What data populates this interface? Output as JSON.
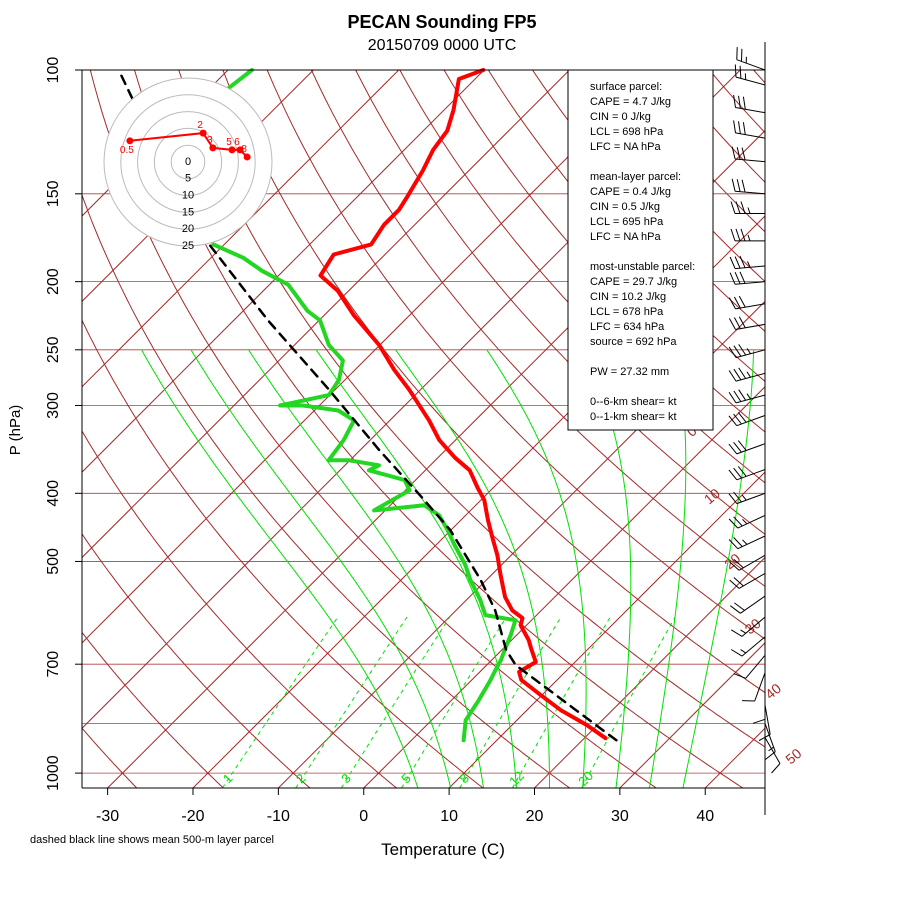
{
  "chart_data": {
    "type": "skewt",
    "title": "PECAN Sounding FP5",
    "subtitle": "20150709 0000 UTC",
    "xlabel": "Temperature (C)",
    "ylabel": "P (hPa)",
    "note": "dashed black line shows mean 500-m layer parcel",
    "xlim": [
      -33,
      47
    ],
    "xticks": [
      -30,
      -20,
      -10,
      0,
      10,
      20,
      30,
      40
    ],
    "ylim": [
      1050,
      100
    ],
    "yticks": [
      100,
      150,
      200,
      250,
      300,
      400,
      500,
      700,
      1000
    ],
    "log_y": true,
    "isobars": [
      100,
      150,
      200,
      250,
      300,
      400,
      500,
      700,
      850,
      1000
    ],
    "isotherms": {
      "color": "#a52a2a",
      "values": [
        -100,
        -90,
        -80,
        -70,
        -60,
        -50,
        -40,
        -30,
        -20,
        -10,
        0,
        10,
        20,
        30,
        40,
        50
      ],
      "labels": [
        0,
        10,
        20,
        30,
        40,
        50
      ]
    },
    "dry_adiabats": {
      "color": "#a52a2a",
      "values": [
        -40,
        -30,
        -20,
        -10,
        0,
        10,
        20,
        30,
        40,
        50,
        60,
        70,
        80,
        90,
        100,
        110,
        120,
        130,
        140,
        150,
        160,
        170,
        180
      ]
    },
    "moist_adiabats": {
      "color": "#00e000",
      "values": [
        4,
        8,
        12,
        16,
        20,
        24,
        28,
        32,
        36
      ]
    },
    "mixing_ratios": {
      "color": "#00e000",
      "values": [
        1,
        2,
        3,
        5,
        8,
        12,
        20
      ]
    },
    "series": [
      {
        "color": "#ff0000",
        "dash": false,
        "pressure": [
          892,
          854,
          814,
          775,
          737,
          718,
          695,
          664,
          647,
          616,
          602,
          587,
          562,
          523,
          490,
          463,
          437,
          409,
          393,
          371,
          356,
          336,
          315,
          285,
          267,
          246,
          223,
          206,
          196,
          183,
          177,
          166,
          158,
          151,
          139,
          130,
          122,
          114,
          103,
          100
        ],
        "values": [
          22.5,
          18.7,
          14.0,
          9.9,
          5.8,
          4.6,
          5.4,
          3.2,
          2.0,
          -0.7,
          -1.3,
          -3.4,
          -5.8,
          -8.9,
          -11.6,
          -14.2,
          -16.8,
          -19.6,
          -21.8,
          -24.8,
          -28.0,
          -31.9,
          -35.4,
          -41.3,
          -45.4,
          -50.1,
          -56.6,
          -61.3,
          -65.1,
          -66.0,
          -62.8,
          -63.6,
          -63.6,
          -64.2,
          -65.4,
          -66.6,
          -67.2,
          -68.9,
          -71.9,
          -70.1
        ]
      },
      {
        "color": "#22d622",
        "dash": false,
        "pressure": [
          898,
          841,
          788,
          737,
          713,
          691,
          664,
          636,
          606,
          596,
          567,
          531,
          506,
          474,
          451,
          430,
          416,
          423,
          396,
          383,
          371,
          365,
          359,
          359,
          336,
          315,
          305,
          300,
          300,
          290,
          276,
          259,
          246,
          227,
          220,
          212,
          202,
          193,
          185,
          177,
          150,
          106,
          100
        ],
        "values": [
          6.1,
          4.0,
          3.2,
          2.2,
          1.6,
          1.1,
          0.2,
          -0.7,
          -1.9,
          -6.0,
          -8.4,
          -11.9,
          -14.2,
          -17.8,
          -20.4,
          -23.1,
          -26.0,
          -31.3,
          -29.5,
          -31.3,
          -36.6,
          -36.0,
          -40.1,
          -42.5,
          -43.1,
          -44.2,
          -47.2,
          -51.9,
          -54.6,
          -50.1,
          -50.7,
          -52.5,
          -56.0,
          -59.9,
          -62.5,
          -64.8,
          -67.8,
          -72.5,
          -76.2,
          -81.3,
          null,
          -97.8,
          -97.2
        ]
      },
      {
        "color": "#000000",
        "dash": true,
        "pressure": [
          898,
          702,
          668,
          587,
          531,
          451,
          402,
          347,
          285,
          227,
          175,
          139,
          100
        ],
        "values": [
          24.0,
          3.4,
          0.5,
          -5.4,
          -10.7,
          -20.1,
          -27.8,
          -37.8,
          -50.7,
          -66.0,
          -82.5,
          -95.4,
          -112.8
        ]
      }
    ],
    "winds": {
      "pressure": [
        100,
        105,
        115,
        125,
        135,
        150,
        160,
        175,
        190,
        200,
        215,
        230,
        250,
        270,
        290,
        310,
        340,
        370,
        400,
        430,
        460,
        490,
        520,
        560,
        600,
        640,
        680,
        720,
        760,
        800,
        850,
        890
      ],
      "direction": [
        290,
        285,
        280,
        280,
        275,
        275,
        270,
        270,
        265,
        265,
        260,
        260,
        255,
        255,
        255,
        250,
        250,
        250,
        250,
        245,
        245,
        240,
        240,
        235,
        230,
        230,
        220,
        200,
        180,
        170,
        160,
        150
      ],
      "speed": [
        25,
        25,
        30,
        30,
        30,
        30,
        35,
        35,
        35,
        30,
        30,
        30,
        35,
        35,
        35,
        30,
        30,
        30,
        25,
        25,
        25,
        20,
        20,
        20,
        15,
        15,
        10,
        10,
        10,
        10,
        15,
        10
      ]
    },
    "hodograph": {
      "color": "#ff0000",
      "rings": [
        0,
        5,
        10,
        15,
        20,
        25
      ],
      "heights": [
        0.5,
        2,
        3,
        5,
        6,
        8
      ],
      "u": [
        -17.3,
        4.5,
        7.4,
        13.1,
        15.5,
        17.6
      ],
      "v": [
        6.3,
        8.6,
        4.2,
        3.6,
        3.6,
        1.5
      ]
    },
    "info": [
      [
        "surface parcel:",
        "CAPE = 4.7 J/kg",
        "CIN = 0 J/kg",
        "LCL = 698 hPa",
        "LFC = NA hPa"
      ],
      [
        "mean-layer parcel:",
        "CAPE = 0.4 J/kg",
        "CIN = 0.5 J/kg",
        "LCL = 695 hPa",
        "LFC = NA hPa"
      ],
      [
        "most-unstable parcel:",
        "CAPE = 29.7 J/kg",
        "CIN = 10.2 J/kg",
        "LCL = 678 hPa",
        "LFC = 634 hPa",
        "source = 692 hPa"
      ],
      [
        "PW =  27.32 mm"
      ],
      [
        "0--6-km shear=  kt",
        "0--1-km shear=  kt"
      ]
    ]
  }
}
